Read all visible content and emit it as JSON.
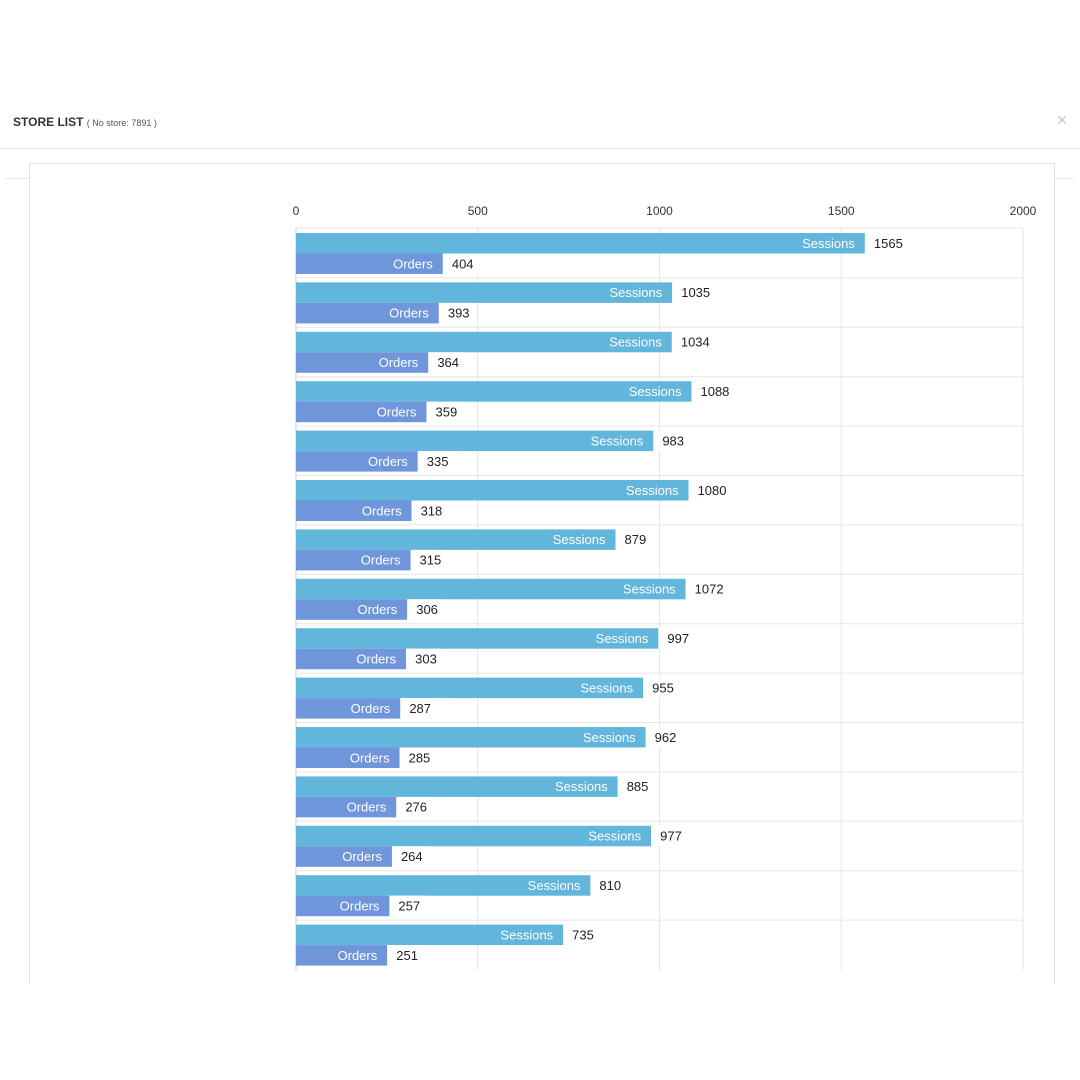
{
  "header": {
    "title": "STORE LIST",
    "subtitle": "( No store: 7891 )",
    "close_icon": "close-icon"
  },
  "chart_data": {
    "type": "bar",
    "orientation": "horizontal",
    "title": "",
    "xlabel": "",
    "ylabel": "",
    "xlim": [
      0,
      2000
    ],
    "ticks": [
      "0",
      "500",
      "1000",
      "1500",
      "2000"
    ],
    "grid": true,
    "legend": "none",
    "categories": [
      "",
      "",
      "",
      "",
      "",
      "",
      "",
      "",
      "",
      "",
      "",
      "",
      "",
      "",
      ""
    ],
    "series": [
      {
        "name": "Sessions",
        "color": "#62b5db",
        "values": [
          1565,
          1035,
          1034,
          1088,
          983,
          1080,
          879,
          1072,
          997,
          955,
          962,
          885,
          977,
          810,
          735
        ]
      },
      {
        "name": "Orders",
        "color": "#6f95db",
        "values": [
          404,
          393,
          364,
          359,
          335,
          318,
          315,
          306,
          303,
          287,
          285,
          276,
          264,
          257,
          251
        ]
      }
    ]
  }
}
